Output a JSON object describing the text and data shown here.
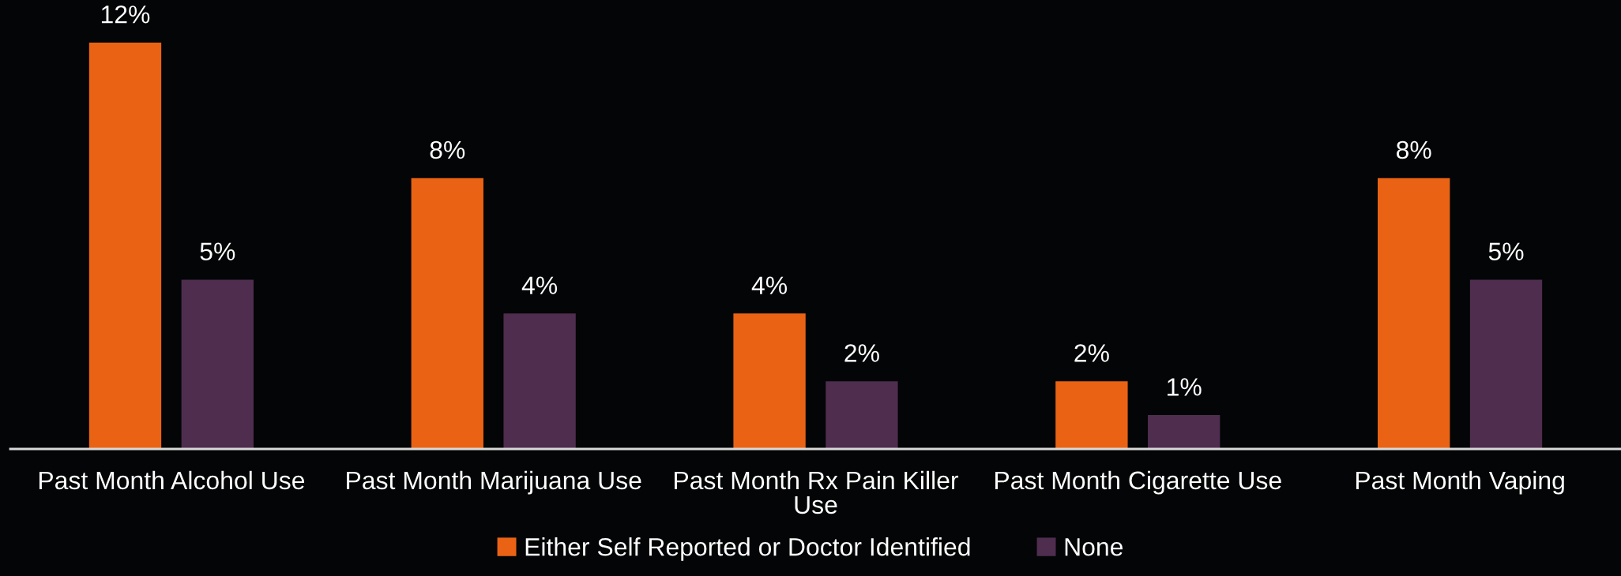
{
  "chart_data": {
    "type": "bar",
    "categories": [
      "Past Month Alcohol Use",
      "Past Month Marijuana Use",
      "Past Month Rx Pain Killer Use",
      "Past Month Cigarette Use",
      "Past Month Vaping"
    ],
    "series": [
      {
        "name": "Either Self Reported or Doctor Identified",
        "color": "#ea6315",
        "values": [
          12,
          8,
          4,
          2,
          8
        ],
        "value_labels": [
          "12%",
          "8%",
          "4%",
          "2%",
          "8%"
        ]
      },
      {
        "name": "None",
        "color": "#4f2d4e",
        "values": [
          5,
          4,
          2,
          1,
          5
        ],
        "value_labels": [
          "5%",
          "4%",
          "2%",
          "1%",
          "5%"
        ]
      }
    ],
    "tick_labels": "x",
    "legend": "bottom"
  }
}
